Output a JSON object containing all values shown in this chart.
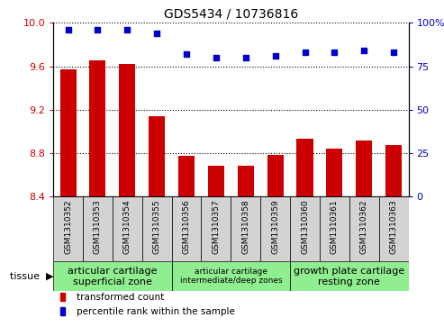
{
  "title": "GDS5434 / 10736816",
  "samples": [
    "GSM1310352",
    "GSM1310353",
    "GSM1310354",
    "GSM1310355",
    "GSM1310356",
    "GSM1310357",
    "GSM1310358",
    "GSM1310359",
    "GSM1310360",
    "GSM1310361",
    "GSM1310362",
    "GSM1310363"
  ],
  "bar_values": [
    9.57,
    9.65,
    9.62,
    9.14,
    8.77,
    8.68,
    8.68,
    8.78,
    8.93,
    8.84,
    8.91,
    8.87
  ],
  "percentile_values": [
    96,
    96,
    96,
    94,
    82,
    80,
    80,
    81,
    83,
    83,
    84,
    83
  ],
  "bar_color": "#cc0000",
  "percentile_color": "#0000cc",
  "ylim_left": [
    8.4,
    10.0
  ],
  "ylim_right": [
    0,
    100
  ],
  "yticks_left": [
    8.4,
    8.8,
    9.2,
    9.6,
    10.0
  ],
  "yticks_right": [
    0,
    25,
    50,
    75,
    100
  ],
  "tissue_groups": [
    {
      "label": "articular cartilage\nsuperficial zone",
      "start": 0,
      "end": 4,
      "color": "#90ee90",
      "fontsize": 8
    },
    {
      "label": "articular cartilage\nintermediate/deep zones",
      "start": 4,
      "end": 8,
      "color": "#90ee90",
      "fontsize": 6.5
    },
    {
      "label": "growth plate cartilage\nresting zone",
      "start": 8,
      "end": 12,
      "color": "#90ee90",
      "fontsize": 8
    }
  ],
  "legend_items": [
    {
      "color": "#cc0000",
      "label": "transformed count"
    },
    {
      "color": "#0000cc",
      "label": "percentile rank within the sample"
    }
  ],
  "bar_width": 0.55,
  "tick_label_fontsize": 6.5,
  "cell_color": "#d3d3d3",
  "plot_bg": "#ffffff",
  "grid_color": "#000000"
}
